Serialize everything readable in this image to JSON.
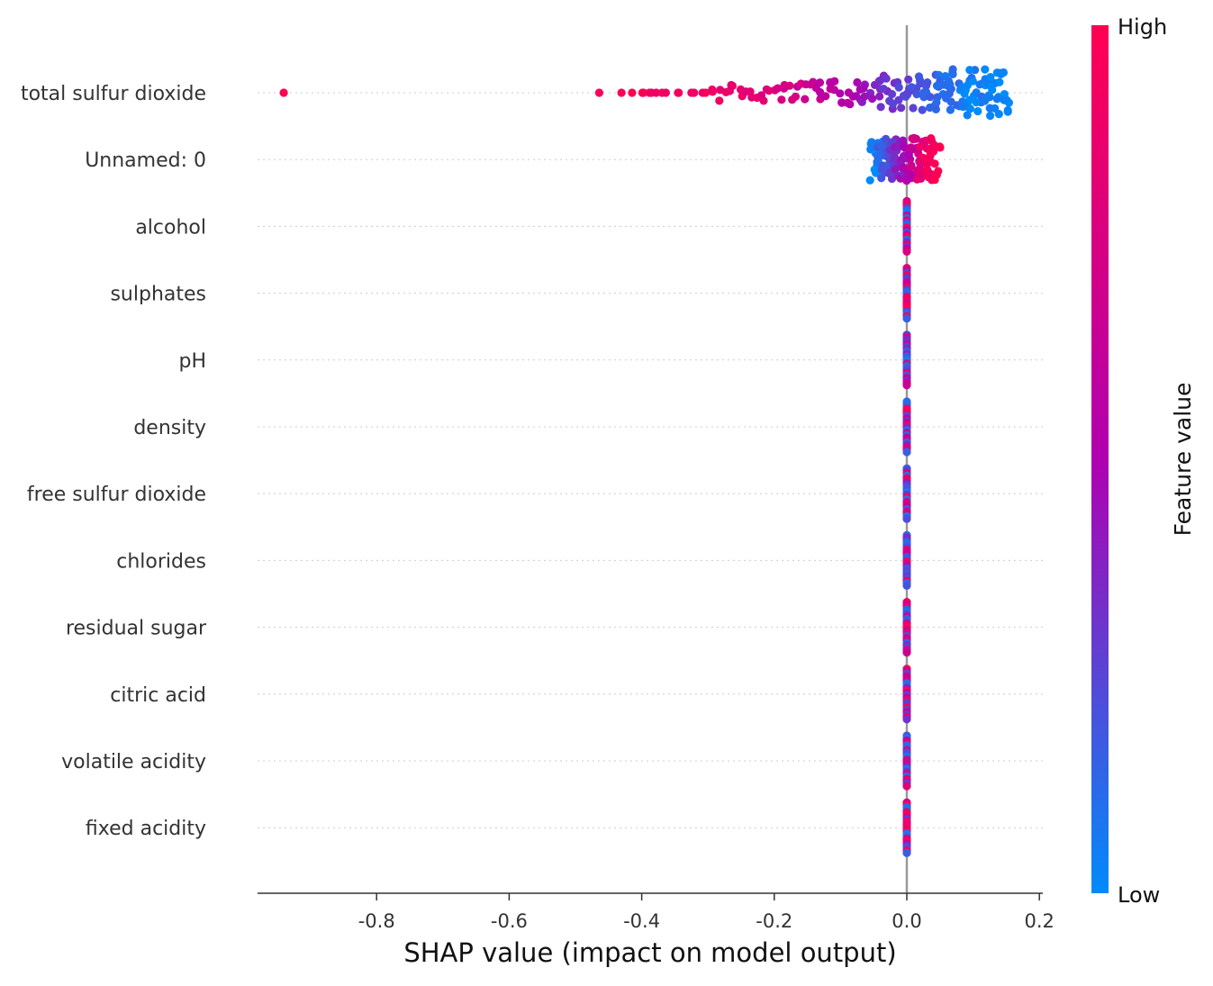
{
  "chart_data": {
    "type": "scatter",
    "subtype": "shap-beeswarm",
    "title": "",
    "xlabel": "SHAP value (impact on model output)",
    "xlim": [
      -0.98,
      0.2
    ],
    "xticks": [
      -0.8,
      -0.6,
      -0.4,
      -0.2,
      0.0,
      0.2
    ],
    "xtick_labels": [
      "-0.8",
      "-0.6",
      "-0.4",
      "-0.2",
      "0.0",
      "0.2"
    ],
    "colorbar": {
      "title": "Feature value",
      "high_label": "High",
      "low_label": "Low",
      "high_color": "#ff0052",
      "mid_color": "#b000b0",
      "low_color": "#008bfb"
    },
    "grid": false,
    "features": [
      {
        "name": "total sulfur dioxide",
        "points": [
          {
            "x": -0.94,
            "c": 1.0
          },
          {
            "x": -0.46,
            "c": 1.0
          },
          {
            "x": -0.43,
            "c": 0.98
          },
          {
            "x": -0.41,
            "c": 0.97
          },
          {
            "x": -0.4,
            "c": 0.97
          },
          {
            "x": -0.395,
            "c": 0.96
          },
          {
            "x": -0.39,
            "c": 0.96
          },
          {
            "x": -0.385,
            "c": 0.95
          },
          {
            "x": -0.38,
            "c": 0.95
          },
          {
            "x": -0.37,
            "c": 0.94
          },
          {
            "x": -0.36,
            "c": 0.94
          },
          {
            "x": -0.35,
            "c": 0.93
          },
          {
            "x": -0.34,
            "c": 0.92
          },
          {
            "x": -0.33,
            "c": 0.92
          },
          {
            "x": -0.32,
            "c": 0.91
          },
          {
            "x": -0.31,
            "c": 0.9
          },
          {
            "x": -0.3,
            "c": 0.9
          },
          {
            "x": -0.29,
            "c": 0.89
          },
          {
            "x": -0.28,
            "c": 0.88
          },
          {
            "x": -0.27,
            "c": 0.87
          },
          {
            "x": -0.26,
            "c": 0.86
          },
          {
            "x": -0.25,
            "c": 0.85
          },
          {
            "x": -0.24,
            "c": 0.84
          },
          {
            "x": -0.23,
            "c": 0.83
          },
          {
            "x": -0.22,
            "c": 0.81
          },
          {
            "x": -0.21,
            "c": 0.8
          },
          {
            "x": -0.2,
            "c": 0.78
          },
          {
            "x": -0.19,
            "c": 0.76
          },
          {
            "x": -0.18,
            "c": 0.74
          },
          {
            "x": -0.17,
            "c": 0.72
          },
          {
            "x": -0.16,
            "c": 0.7
          },
          {
            "x": -0.15,
            "c": 0.68
          },
          {
            "x": -0.14,
            "c": 0.65
          },
          {
            "x": -0.13,
            "c": 0.62
          },
          {
            "x": -0.12,
            "c": 0.6
          },
          {
            "x": -0.11,
            "c": 0.57
          },
          {
            "x": -0.1,
            "c": 0.54
          },
          {
            "x": -0.09,
            "c": 0.51
          },
          {
            "x": -0.08,
            "c": 0.48
          },
          {
            "x": -0.07,
            "c": 0.45
          },
          {
            "x": -0.06,
            "c": 0.42
          },
          {
            "x": -0.05,
            "c": 0.39
          },
          {
            "x": -0.04,
            "c": 0.36
          },
          {
            "x": -0.03,
            "c": 0.33
          },
          {
            "x": -0.02,
            "c": 0.3
          },
          {
            "x": -0.01,
            "c": 0.27
          },
          {
            "x": 0.0,
            "c": 0.24
          },
          {
            "x": 0.01,
            "c": 0.22
          },
          {
            "x": 0.02,
            "c": 0.2
          },
          {
            "x": 0.03,
            "c": 0.18
          },
          {
            "x": 0.04,
            "c": 0.16
          },
          {
            "x": 0.05,
            "c": 0.14
          },
          {
            "x": 0.06,
            "c": 0.12
          },
          {
            "x": 0.07,
            "c": 0.1
          },
          {
            "x": 0.08,
            "c": 0.08
          },
          {
            "x": 0.09,
            "c": 0.06
          },
          {
            "x": 0.1,
            "c": 0.05
          },
          {
            "x": 0.11,
            "c": 0.04
          },
          {
            "x": 0.12,
            "c": 0.03
          },
          {
            "x": 0.13,
            "c": 0.02
          },
          {
            "x": 0.14,
            "c": 0.01
          },
          {
            "x": 0.15,
            "c": 0.0
          }
        ]
      },
      {
        "name": "Unnamed: 0",
        "points": [
          {
            "x": -0.05,
            "c": 0.0
          },
          {
            "x": -0.045,
            "c": 0.05
          },
          {
            "x": -0.04,
            "c": 0.1
          },
          {
            "x": -0.035,
            "c": 0.15
          },
          {
            "x": -0.03,
            "c": 0.2
          },
          {
            "x": -0.025,
            "c": 0.25
          },
          {
            "x": -0.02,
            "c": 0.3
          },
          {
            "x": -0.015,
            "c": 0.35
          },
          {
            "x": -0.01,
            "c": 0.4
          },
          {
            "x": -0.005,
            "c": 0.45
          },
          {
            "x": 0.0,
            "c": 0.5
          },
          {
            "x": 0.005,
            "c": 0.55
          },
          {
            "x": 0.01,
            "c": 0.62
          },
          {
            "x": 0.015,
            "c": 0.7
          },
          {
            "x": 0.02,
            "c": 0.78
          },
          {
            "x": 0.025,
            "c": 0.85
          },
          {
            "x": 0.03,
            "c": 0.9
          },
          {
            "x": 0.035,
            "c": 0.95
          },
          {
            "x": 0.04,
            "c": 0.98
          },
          {
            "x": 0.045,
            "c": 1.0
          }
        ]
      },
      {
        "name": "alcohol",
        "points": [
          {
            "x": 0.0,
            "c": 0.5
          }
        ]
      },
      {
        "name": "sulphates",
        "points": [
          {
            "x": 0.0,
            "c": 0.5
          }
        ]
      },
      {
        "name": "pH",
        "points": [
          {
            "x": 0.0,
            "c": 0.5
          }
        ]
      },
      {
        "name": "density",
        "points": [
          {
            "x": 0.0,
            "c": 0.5
          }
        ]
      },
      {
        "name": "free sulfur dioxide",
        "points": [
          {
            "x": 0.0,
            "c": 0.5
          }
        ]
      },
      {
        "name": "chlorides",
        "points": [
          {
            "x": 0.0,
            "c": 0.5
          }
        ]
      },
      {
        "name": "residual sugar",
        "points": [
          {
            "x": 0.0,
            "c": 0.5
          }
        ]
      },
      {
        "name": "citric acid",
        "points": [
          {
            "x": 0.0,
            "c": 0.5
          }
        ]
      },
      {
        "name": "volatile acidity",
        "points": [
          {
            "x": 0.0,
            "c": 0.5
          }
        ]
      },
      {
        "name": "fixed acidity",
        "points": [
          {
            "x": 0.0,
            "c": 0.5
          }
        ]
      }
    ]
  }
}
